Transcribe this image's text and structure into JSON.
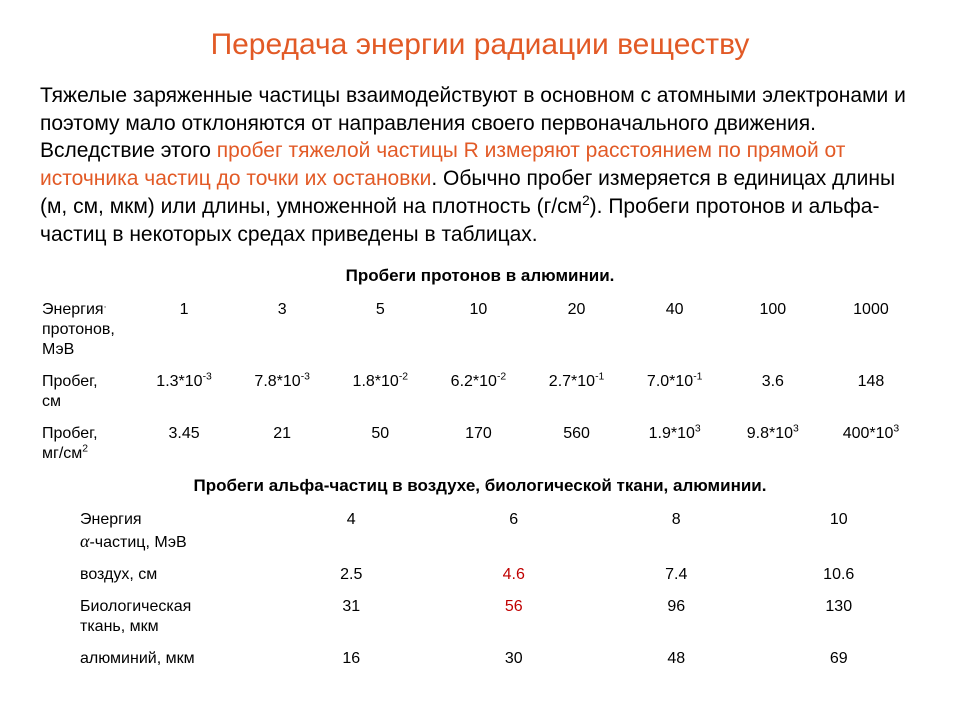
{
  "colors": {
    "title": "#e25a26",
    "text": "#000000",
    "highlight": "#e25a26",
    "red_emph": "#c00000",
    "background": "#ffffff"
  },
  "title": "Передача энергии радиации веществу",
  "paragraph": {
    "pre": "Тяжелые заряженные частицы взаимодействуют в основном с атомными электронами и поэтому мало отклоняются от направления своего первоначального движения. Вследствие этого ",
    "hl": "пробег тяжелой частицы R измеряют расстоянием по прямой от источника частиц до точки их остановки",
    "post_a": ". Обычно пробег измеряется в единицах длины (м, см, мкм) или длины, умноженной на плотность (г/см",
    "sup": "2",
    "post_b": "). Пробеги протонов и альфа-частиц в некоторых средах приведены в таблицах."
  },
  "table1": {
    "caption": "Пробеги протонов в алюминии.",
    "row_labels": {
      "r0a": "Энергия",
      "r0b": "протонов,",
      "r0c": "МэВ",
      "r1a": "Пробег,",
      "r1b": "см",
      "r2a": "Пробег,",
      "r2b": "мг/см"
    },
    "energy": [
      "1",
      "3",
      "5",
      "10",
      "20",
      "40",
      "100",
      "1000"
    ],
    "range_cm": [
      {
        "m": "1.3",
        "e": "-3"
      },
      {
        "m": "7.8",
        "e": "-3"
      },
      {
        "m": "1.8",
        "e": "-2"
      },
      {
        "m": "6.2",
        "e": "-2"
      },
      {
        "m": "2.7",
        "e": "-1"
      },
      {
        "m": "7.0",
        "e": "-1"
      },
      {
        "m": "3.6",
        "e": ""
      },
      {
        "m": "148",
        "e": ""
      }
    ],
    "range_mg": [
      {
        "m": "3.45",
        "e": ""
      },
      {
        "m": "21",
        "e": ""
      },
      {
        "m": "50",
        "e": ""
      },
      {
        "m": "170",
        "e": ""
      },
      {
        "m": "560",
        "e": ""
      },
      {
        "m": "1.9",
        "e": "3"
      },
      {
        "m": "9.8",
        "e": "3"
      },
      {
        "m": "400",
        "e": "3"
      }
    ]
  },
  "table2": {
    "caption": "Пробеги альфа-частиц в воздухе, биологической ткани, алюминии.",
    "row_labels": {
      "r0a": "Энергия",
      "r0b": "-частиц, МэВ",
      "r1": "воздух, см",
      "r2a": "Биологическая",
      "r2b": "ткань, мкм",
      "r3": "алюминий, мкм"
    },
    "energy": [
      "4",
      "6",
      "8",
      "10"
    ],
    "air": [
      "2.5",
      "4.6",
      "7.4",
      "10.6"
    ],
    "bio": [
      "31",
      "56",
      "96",
      "130"
    ],
    "al": [
      "16",
      "30",
      "48",
      "69"
    ],
    "emph_cols": [
      1
    ]
  }
}
